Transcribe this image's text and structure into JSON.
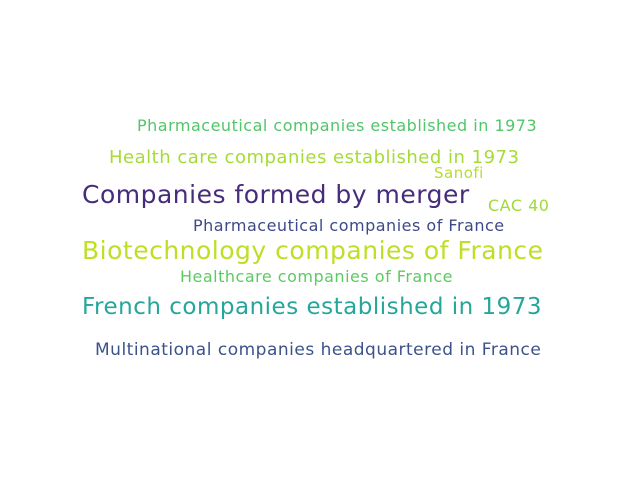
{
  "words": [
    {
      "text": "Pharmaceutical companies established in 1973",
      "color": "#52c569"
    },
    {
      "text": "Health care companies established in 1973",
      "color": "#a5db36"
    },
    {
      "text": "Sanofi",
      "color": "#b5de2b"
    },
    {
      "text": "Companies formed by merger",
      "color": "#472c7a"
    },
    {
      "text": "CAC 40",
      "color": "#a0da39"
    },
    {
      "text": "Pharmaceutical companies of France",
      "color": "#3e4989"
    },
    {
      "text": "Biotechnology companies of France",
      "color": "#bddf26"
    },
    {
      "text": "Healthcare companies of France",
      "color": "#5ec962"
    },
    {
      "text": "French companies established in 1973",
      "color": "#26a69a"
    },
    {
      "text": "Multinational companies headquartered in France",
      "color": "#3b528b"
    }
  ]
}
